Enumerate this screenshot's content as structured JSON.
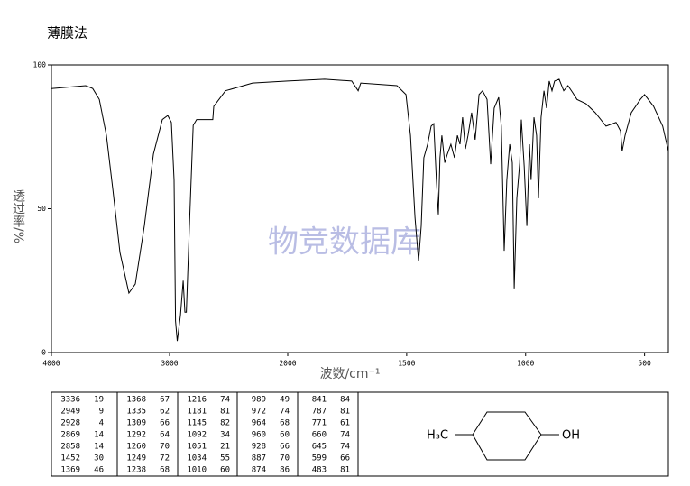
{
  "chart_data": {
    "type": "line",
    "title": "薄膜法",
    "xlabel": "波数/cm⁻¹",
    "ylabel": "透过率/%",
    "watermark": "物竞数据库",
    "xlim": [
      4000,
      400
    ],
    "x_scale_change": 2000,
    "xticks": [
      4000,
      3000,
      2000,
      1500,
      1000,
      500
    ],
    "ylim": [
      0,
      100
    ],
    "yticks": [
      0,
      50,
      100
    ],
    "color": "#000000",
    "x": [
      4000,
      3710,
      3650,
      3595,
      3534,
      3480,
      3420,
      3344,
      3290,
      3214,
      3137,
      3061,
      3015,
      2985,
      2962,
      2950,
      2935,
      2908,
      2885,
      2870,
      2858,
      2832,
      2800,
      2771,
      2740,
      2634,
      2626,
      2527,
      2298,
      2000,
      1845,
      1731,
      1704,
      1693,
      1541,
      1503,
      1484,
      1465,
      1450,
      1439,
      1428,
      1412,
      1397,
      1386,
      1375,
      1367,
      1360,
      1352,
      1340,
      1329,
      1314,
      1299,
      1287,
      1276,
      1265,
      1253,
      1242,
      1227,
      1212,
      1196,
      1181,
      1162,
      1147,
      1132,
      1113,
      1102,
      1090,
      1079,
      1067,
      1056,
      1048,
      1037,
      1025,
      1018,
      1006,
      995,
      984,
      977,
      965,
      954,
      946,
      935,
      923,
      912,
      901,
      889,
      878,
      859,
      840,
      822,
      802,
      784,
      746,
      707,
      662,
      620,
      601,
      594,
      582,
      556,
      518,
      500,
      462,
      424,
      400
    ],
    "values": [
      91.8,
      92.8,
      91.8,
      88,
      75.5,
      56.7,
      34.8,
      20.7,
      23.8,
      44,
      69,
      81,
      82.4,
      80,
      60,
      11,
      4,
      13,
      25,
      14,
      14,
      44,
      79,
      81,
      81,
      81,
      85.6,
      91,
      93.7,
      94.4,
      95,
      94.4,
      91,
      93.7,
      92.8,
      89.7,
      75.5,
      47,
      31.7,
      44,
      67.7,
      72.4,
      78.7,
      79.6,
      60,
      48,
      67.7,
      75.5,
      66,
      69,
      72.4,
      67.7,
      75.5,
      72.4,
      81.8,
      70.8,
      75.5,
      83.4,
      74,
      89.7,
      91,
      88,
      65.5,
      85,
      88.7,
      78.7,
      35.4,
      60,
      72.4,
      66,
      22.3,
      53.6,
      66,
      81,
      64.6,
      44,
      72.4,
      60,
      81.8,
      75.5,
      53.6,
      81.8,
      91,
      85,
      94.4,
      91,
      94.4,
      95,
      91,
      92.8,
      90.3,
      88,
      86.5,
      83.4,
      78.7,
      80,
      77,
      70,
      75.5,
      83.4,
      88,
      89.7,
      85.6,
      78.7,
      70
    ],
    "peak_table": [
      [
        [
          "3336",
          "19"
        ],
        [
          "2949",
          "9"
        ],
        [
          "2928",
          "4"
        ],
        [
          "2869",
          "14"
        ],
        [
          "2858",
          "14"
        ],
        [
          "1452",
          "30"
        ],
        [
          "1369",
          "46"
        ]
      ],
      [
        [
          "1368",
          "67"
        ],
        [
          "1335",
          "62"
        ],
        [
          "1309",
          "66"
        ],
        [
          "1292",
          "64"
        ],
        [
          "1260",
          "70"
        ],
        [
          "1249",
          "72"
        ],
        [
          "1238",
          "68"
        ]
      ],
      [
        [
          "1216",
          "74"
        ],
        [
          "1181",
          "81"
        ],
        [
          "1145",
          "82"
        ],
        [
          "1092",
          "34"
        ],
        [
          "1051",
          "21"
        ],
        [
          "1034",
          "55"
        ],
        [
          "1010",
          "60"
        ]
      ],
      [
        [
          "989",
          "49"
        ],
        [
          "972",
          "74"
        ],
        [
          "964",
          "68"
        ],
        [
          "960",
          "60"
        ],
        [
          "928",
          "66"
        ],
        [
          "887",
          "70"
        ],
        [
          "874",
          "86"
        ]
      ],
      [
        [
          "841",
          "84"
        ],
        [
          "787",
          "81"
        ],
        [
          "771",
          "61"
        ],
        [
          "660",
          "74"
        ],
        [
          "645",
          "74"
        ],
        [
          "599",
          "66"
        ],
        [
          "483",
          "81"
        ]
      ]
    ],
    "structure": {
      "left": "H₃C",
      "right": "OH"
    }
  }
}
